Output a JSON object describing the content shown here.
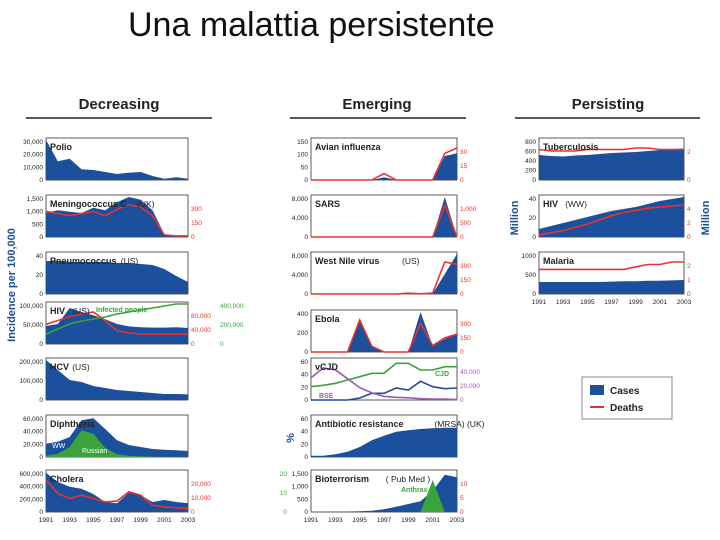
{
  "slide": {
    "title": "Una malattia persistente"
  },
  "columns": {
    "decreasing": "Decreasing",
    "emerging": "Emerging",
    "persisting": "Persisting"
  },
  "colors": {
    "cases": "#1c4f9c",
    "deaths": "#e8332a",
    "green": "#3aa33a",
    "purple": "#9b59b6"
  },
  "axis_labels": {
    "incidence": "Incidence per 100,000",
    "percent": "%",
    "million_left": "Million",
    "million_right": "Million"
  },
  "legend": {
    "cases": "Cases",
    "deaths": "Deaths"
  },
  "chart_data": [
    {
      "type": "area",
      "title": "Polio",
      "column": "Decreasing",
      "x": [
        1991,
        1992,
        1993,
        1994,
        1995,
        1996,
        1997,
        1998,
        1999,
        2000,
        2001,
        2002,
        2003
      ],
      "series": [
        {
          "name": "Cases",
          "values": [
            30000,
            14000,
            16000,
            8000,
            7500,
            6000,
            4500,
            5500,
            6000,
            3000,
            1000,
            2000,
            1000
          ]
        }
      ],
      "ylim": [
        0,
        30000
      ],
      "yticks": [
        "30,000",
        "20,000",
        "10,000",
        "0"
      ]
    },
    {
      "type": "area",
      "title": "Meningococcus C",
      "subtitle": "(UK)",
      "column": "Decreasing",
      "x": [
        1991,
        1992,
        1993,
        1994,
        1995,
        1996,
        1997,
        1998,
        1999,
        2000,
        2001,
        2002,
        2003
      ],
      "series": [
        {
          "name": "Cases",
          "values": [
            900,
            1000,
            950,
            900,
            1100,
            1000,
            1300,
            1500,
            1400,
            1000,
            100,
            50,
            50
          ]
        },
        {
          "name": "Deaths",
          "values": [
            120,
            110,
            100,
            110,
            120,
            100,
            130,
            150,
            140,
            100,
            10,
            5,
            5
          ]
        }
      ],
      "ylim": [
        0,
        1500
      ],
      "yticks": [
        "1,500",
        "1,000",
        "500",
        "0"
      ],
      "rticks": [
        "300",
        "150",
        "0"
      ]
    },
    {
      "type": "area",
      "title": "Pneumococcus",
      "subtitle": "(US)",
      "column": "Decreasing",
      "x": [
        1991,
        1992,
        1993,
        1994,
        1995,
        1996,
        1997,
        1998,
        1999,
        2000,
        2001,
        2002,
        2003
      ],
      "series": [
        {
          "name": "Cases",
          "values": [
            33,
            33,
            32,
            32,
            32,
            32,
            31,
            31,
            30,
            29,
            25,
            18,
            12
          ]
        }
      ],
      "ylim": [
        0,
        40
      ],
      "yticks": [
        "40",
        "20",
        "0"
      ]
    },
    {
      "type": "area",
      "title": "HIV",
      "subtitle": "(US)",
      "column": "Decreasing",
      "x": [
        1991,
        1992,
        1993,
        1994,
        1995,
        1996,
        1997,
        1998,
        1999,
        2000,
        2001,
        2002,
        2003
      ],
      "series": [
        {
          "name": "Cases",
          "values": [
            45000,
            50000,
            90000,
            80000,
            72000,
            62000,
            50000,
            44000,
            42000,
            41000,
            41000,
            42000,
            40000
          ]
        },
        {
          "name": "Deaths",
          "values": [
            30000,
            36000,
            42000,
            46000,
            49000,
            36000,
            20000,
            17000,
            15500,
            15000,
            15000,
            15000,
            15000
          ]
        },
        {
          "name": "Infected people",
          "values": [
            100000,
            150000,
            200000,
            230000,
            250000,
            270000,
            300000,
            320000,
            340000,
            360000,
            380000,
            400000,
            400000
          ]
        }
      ],
      "ylim": [
        0,
        100000
      ],
      "yticks": [
        "100,000",
        "50,000",
        "0"
      ],
      "rticks": [
        "80,000",
        "40,000",
        "0"
      ],
      "r2ticks": [
        "400,000",
        "200,000",
        "0"
      ]
    },
    {
      "type": "area",
      "title": "HCV",
      "subtitle": "(US)",
      "column": "Decreasing",
      "x": [
        1991,
        1992,
        1993,
        1994,
        1995,
        1996,
        1997,
        1998,
        1999,
        2000,
        2001,
        2002,
        2003
      ],
      "series": [
        {
          "name": "Cases",
          "values": [
            200000,
            150000,
            100000,
            90000,
            70000,
            60000,
            50000,
            45000,
            40000,
            35000,
            30000,
            30000,
            28000
          ]
        }
      ],
      "ylim": [
        0,
        200000
      ],
      "yticks": [
        "200,000",
        "100,000",
        "0"
      ]
    },
    {
      "type": "area",
      "title": "Diphtheria",
      "column": "Decreasing",
      "x": [
        1991,
        1992,
        1993,
        1994,
        1995,
        1996,
        1997,
        1998,
        1999,
        2000,
        2001,
        2002,
        2003
      ],
      "series": [
        {
          "name": "WW",
          "values": [
            20000,
            23000,
            30000,
            55000,
            58000,
            42000,
            25000,
            18000,
            15000,
            12000,
            11000,
            10000,
            9000
          ]
        },
        {
          "name": "Russian",
          "values": [
            2000,
            5000,
            15000,
            40000,
            35000,
            14000,
            4000,
            2000,
            1000,
            500,
            300,
            200,
            200
          ]
        }
      ],
      "ylim": [
        0,
        60000
      ],
      "yticks": [
        "60,000",
        "40,000",
        "20,000",
        "0"
      ]
    },
    {
      "type": "area",
      "title": "Cholera",
      "column": "Decreasing",
      "x": [
        1991,
        1992,
        1993,
        1994,
        1995,
        1996,
        1997,
        1998,
        1999,
        2000,
        2001,
        2002,
        2003
      ],
      "series": [
        {
          "name": "Cases",
          "values": [
            590000,
            450000,
            380000,
            350000,
            270000,
            150000,
            130000,
            290000,
            250000,
            150000,
            180000,
            150000,
            130000
          ]
        },
        {
          "name": "Deaths",
          "values": [
            19000,
            11000,
            8000,
            10000,
            8000,
            6000,
            6500,
            12000,
            10000,
            4000,
            3000,
            2500,
            2000
          ]
        }
      ],
      "ylim": [
        0,
        600000
      ],
      "yticks": [
        "600,000",
        "400,000",
        "200,000",
        "0"
      ],
      "rticks": [
        "20,000",
        "10,000",
        "0"
      ]
    },
    {
      "type": "area",
      "title": "Avian influenza",
      "column": "Emerging",
      "x": [
        1991,
        1992,
        1993,
        1994,
        1995,
        1996,
        1997,
        1998,
        1999,
        2000,
        2001,
        2002,
        2003
      ],
      "series": [
        {
          "name": "Cases",
          "values": [
            0,
            0,
            0,
            0,
            0,
            0,
            10,
            0,
            0,
            0,
            0,
            90,
            100
          ]
        },
        {
          "name": "Deaths",
          "values": [
            0,
            0,
            0,
            0,
            0,
            0,
            6,
            0,
            0,
            0,
            0,
            25,
            30
          ]
        }
      ],
      "ylim": [
        0,
        150
      ],
      "yticks": [
        "150",
        "100",
        "50",
        "0"
      ],
      "rticks": [
        "30",
        "15",
        "0"
      ]
    },
    {
      "type": "area",
      "title": "SARS",
      "column": "Emerging",
      "x": [
        1991,
        1992,
        1993,
        1994,
        1995,
        1996,
        1997,
        1998,
        1999,
        2000,
        2001,
        2002,
        2003
      ],
      "series": [
        {
          "name": "Cases",
          "values": [
            0,
            0,
            0,
            0,
            0,
            0,
            0,
            0,
            0,
            0,
            0,
            8000,
            0
          ]
        },
        {
          "name": "Deaths",
          "values": [
            0,
            0,
            0,
            0,
            0,
            0,
            0,
            0,
            0,
            0,
            0,
            800,
            0
          ]
        }
      ],
      "ylim": [
        0,
        8000
      ],
      "yticks": [
        "8,000",
        "4,000",
        "0"
      ],
      "rticks": [
        "1,000",
        "500",
        "0"
      ]
    },
    {
      "type": "area",
      "title": "West Nile virus",
      "subtitle": "(US)",
      "column": "Emerging",
      "x": [
        1991,
        1992,
        1993,
        1994,
        1995,
        1996,
        1997,
        1998,
        1999,
        2000,
        2001,
        2002,
        2003
      ],
      "series": [
        {
          "name": "Cases",
          "values": [
            0,
            0,
            0,
            0,
            0,
            0,
            0,
            0,
            50,
            20,
            60,
            4000,
            8000
          ]
        },
        {
          "name": "Deaths",
          "values": [
            0,
            0,
            0,
            0,
            0,
            0,
            0,
            0,
            7,
            2,
            9,
            280,
            260
          ]
        }
      ],
      "ylim": [
        0,
        8000
      ],
      "yticks": [
        "8,000",
        "4,000",
        "0"
      ],
      "rticks": [
        "300",
        "150",
        "0"
      ]
    },
    {
      "type": "area",
      "title": "Ebola",
      "column": "Emerging",
      "x": [
        1991,
        1992,
        1993,
        1994,
        1995,
        1996,
        1997,
        1998,
        1999,
        2000,
        2001,
        2002,
        2003
      ],
      "series": [
        {
          "name": "Cases",
          "values": [
            0,
            0,
            0,
            0,
            315,
            60,
            0,
            0,
            0,
            425,
            60,
            130,
            180
          ]
        },
        {
          "name": "Deaths",
          "values": [
            0,
            0,
            0,
            0,
            250,
            45,
            0,
            0,
            0,
            224,
            50,
            110,
            140
          ]
        }
      ],
      "ylim": [
        0,
        400
      ],
      "yticks": [
        "400",
        "200",
        "0"
      ],
      "rticks": [
        "300",
        "150",
        "0"
      ]
    },
    {
      "type": "line",
      "title": "vCJD",
      "column": "Emerging",
      "x": [
        1991,
        1992,
        1993,
        1994,
        1995,
        1996,
        1997,
        1998,
        1999,
        2000,
        2001,
        2002,
        2003
      ],
      "series": [
        {
          "name": "vCJD",
          "values": [
            0,
            0,
            0,
            0,
            3,
            10,
            10,
            18,
            15,
            28,
            20,
            17,
            18
          ]
        },
        {
          "name": "CJD",
          "values": [
            20,
            22,
            25,
            30,
            35,
            40,
            40,
            55,
            55,
            45,
            45,
            50,
            50
          ]
        },
        {
          "name": "BSE",
          "values": [
            25000,
            36000,
            34000,
            24000,
            14000,
            8000,
            4000,
            3000,
            2500,
            1500,
            1000,
            1000,
            500
          ]
        }
      ],
      "ylim": [
        0,
        60
      ],
      "yticks": [
        "60",
        "40",
        "20",
        "0"
      ],
      "rticks": [
        "40,000",
        "20,000",
        "0"
      ]
    },
    {
      "type": "area",
      "title": "Antibiotic resistance",
      "subtitle": "(MRSA) (UK)",
      "column": "Emerging",
      "x": [
        1991,
        1992,
        1993,
        1994,
        1995,
        1996,
        1997,
        1998,
        1999,
        2000,
        2001,
        2002,
        2003
      ],
      "series": [
        {
          "name": "Cases",
          "values": [
            2,
            2,
            4,
            8,
            15,
            25,
            32,
            38,
            40,
            42,
            43,
            44,
            44
          ]
        }
      ],
      "ylim": [
        0,
        60
      ],
      "yticks": [
        "60",
        "40",
        "20",
        "0"
      ]
    },
    {
      "type": "area",
      "title": "Bioterrorism",
      "subtitle": "( Pub Med )",
      "column": "Emerging",
      "x": [
        1991,
        1992,
        1993,
        1994,
        1995,
        1996,
        1997,
        1998,
        1999,
        2000,
        2001,
        2002,
        2003
      ],
      "series": [
        {
          "name": "Cases",
          "values": [
            0,
            10,
            10,
            20,
            30,
            50,
            100,
            200,
            300,
            400,
            800,
            1400,
            1300
          ]
        },
        {
          "name": "Anthrax",
          "values": [
            0,
            0,
            0,
            0,
            0,
            0,
            0,
            0,
            0,
            0,
            22,
            0,
            0
          ]
        }
      ],
      "ylim": [
        0,
        1500
      ],
      "yticks": [
        "1,500",
        "1,000",
        "500",
        "0"
      ],
      "lticks": [
        "20",
        "10",
        "0"
      ],
      "rticks": [
        "10",
        "5",
        "0"
      ]
    },
    {
      "type": "area",
      "title": "Tuberculosis",
      "column": "Persisting",
      "x": [
        1991,
        1992,
        1993,
        1994,
        1995,
        1996,
        1997,
        1998,
        1999,
        2000,
        2001,
        2002,
        2003
      ],
      "series": [
        {
          "name": "Cases",
          "values": [
            500,
            480,
            470,
            490,
            500,
            520,
            540,
            550,
            560,
            580,
            600,
            620,
            630
          ]
        },
        {
          "name": "Deaths",
          "values": [
            2.0,
            1.9,
            1.9,
            1.9,
            2.0,
            2.0,
            2.0,
            2.0,
            2.1,
            2.1,
            2.0,
            2.0,
            2.0
          ]
        }
      ],
      "ylim": [
        0,
        800
      ],
      "yticks": [
        "800",
        "600",
        "400",
        "200",
        "0"
      ],
      "rticks": [
        "2",
        "0"
      ]
    },
    {
      "type": "area",
      "title": "HIV",
      "subtitle": "(WW)",
      "column": "Persisting",
      "x": [
        1991,
        1992,
        1993,
        1994,
        1995,
        1996,
        1997,
        1998,
        1999,
        2000,
        2001,
        2002,
        2003
      ],
      "series": [
        {
          "name": "Cases",
          "values": [
            8,
            11,
            14,
            17,
            20,
            23,
            26,
            28,
            30,
            33,
            36,
            38,
            40
          ]
        },
        {
          "name": "Deaths",
          "values": [
            0.2,
            0.4,
            0.6,
            0.9,
            1.2,
            1.6,
            2.0,
            2.3,
            2.5,
            2.7,
            2.8,
            2.9,
            3.0
          ]
        }
      ],
      "ylim": [
        0,
        40
      ],
      "yticks": [
        "40",
        "20",
        "0"
      ],
      "rticks": [
        "4",
        "2",
        "0"
      ]
    },
    {
      "type": "area",
      "title": "Malaria",
      "column": "Persisting",
      "x": [
        1991,
        1992,
        1993,
        1994,
        1995,
        1996,
        1997,
        1998,
        1999,
        2000,
        2001,
        2002,
        2003
      ],
      "series": [
        {
          "name": "Cases",
          "values": [
            300,
            300,
            300,
            300,
            300,
            300,
            310,
            320,
            320,
            330,
            330,
            340,
            350
          ]
        },
        {
          "name": "Deaths",
          "values": [
            1.0,
            1.0,
            1.0,
            1.0,
            1.0,
            1.0,
            1.0,
            1.0,
            1.1,
            1.2,
            1.2,
            1.3,
            1.3
          ]
        }
      ],
      "ylim": [
        0,
        1000
      ],
      "yticks": [
        "1000",
        "500",
        "0"
      ],
      "rticks": [
        "2",
        "1",
        "0"
      ]
    }
  ],
  "x_tick_labels": [
    "1991",
    "1993",
    "1995",
    "1997",
    "1999",
    "2001",
    "2003"
  ]
}
